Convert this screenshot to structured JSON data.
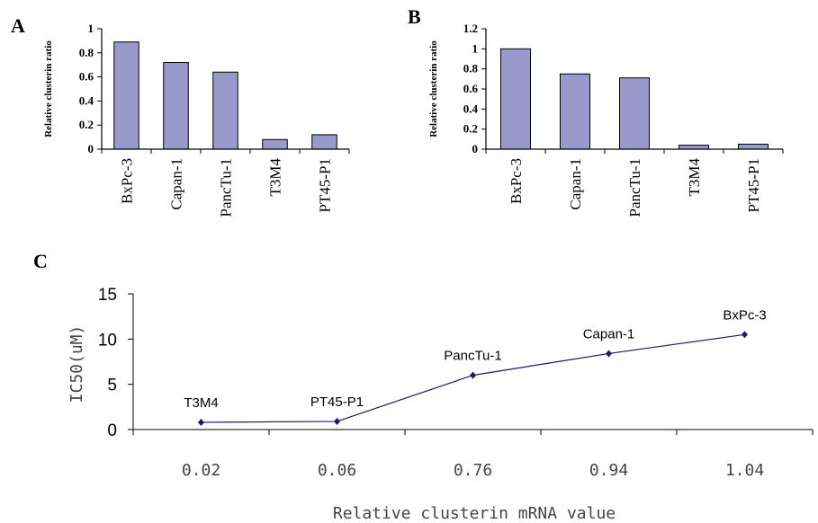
{
  "chart_data": [
    {
      "panel": "A",
      "type": "bar",
      "ylabel": "Relative clusterin ratio",
      "xlabel": "",
      "categories": [
        "BxPc-3",
        "Capan-1",
        "PancTu-1",
        "T3M4",
        "PT45-P1"
      ],
      "values": [
        0.89,
        0.72,
        0.64,
        0.08,
        0.12
      ],
      "ylim": [
        0,
        1
      ],
      "yticks": [
        "0",
        "0.2",
        "0.4",
        "0.6",
        "0.8",
        "1"
      ],
      "bar_color": "#9999cc",
      "grid": false
    },
    {
      "panel": "B",
      "type": "bar",
      "ylabel": "Relative clusterin ratio",
      "xlabel": "",
      "categories": [
        "BxPc-3",
        "Capan-1",
        "PancTu-1",
        "T3M4",
        "PT45-P1"
      ],
      "values": [
        1.0,
        0.75,
        0.71,
        0.04,
        0.05
      ],
      "ylim": [
        0,
        1.2
      ],
      "yticks": [
        "0",
        "0.2",
        "0.4",
        "0.6",
        "0.8",
        "1",
        "1.2"
      ],
      "bar_color": "#9999cc",
      "grid": false
    },
    {
      "panel": "C",
      "type": "line",
      "xlabel": "Relative clusterin mRNA value",
      "ylabel": "IC50(uM)",
      "x": [
        "0.02",
        "0.06",
        "0.76",
        "0.94",
        "1.04"
      ],
      "values": [
        0.8,
        0.9,
        6.0,
        8.4,
        10.5
      ],
      "point_labels": [
        "T3M4",
        "PT45-P1",
        "PancTu-1",
        "Capan-1",
        "BxPc-3"
      ],
      "ylim": [
        0,
        15
      ],
      "yticks": [
        "0",
        "5",
        "10",
        "15"
      ],
      "line_color": "#1a1a6e",
      "grid": false
    }
  ]
}
